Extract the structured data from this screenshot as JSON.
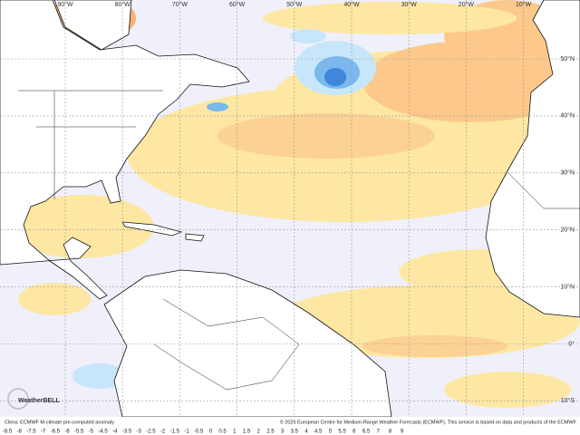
{
  "longitudes": [
    "90°W",
    "80°W",
    "70°W",
    "60°W",
    "50°W",
    "40°W",
    "30°W",
    "20°W",
    "10°W"
  ],
  "latitudes": [
    "50°N",
    "40°N",
    "30°N",
    "20°N",
    "10°N",
    "0°",
    "10°S"
  ],
  "logo": "WeatherBELL",
  "footer": {
    "left": "Clima: ECMWF M-climate pre-computed anomaly",
    "right": "© 2025 European Centre for Medium-Range Weather Forecasts (ECMWF). This service is based on data and products of the ECMWF"
  },
  "colorbar": {
    "ticks": [
      -8.5,
      -8,
      -7.5,
      -7,
      -6.5,
      -6,
      -5.5,
      -5,
      -4.5,
      -4,
      -3.5,
      -3,
      -2.5,
      -2,
      -1.5,
      -1,
      -0.5,
      0,
      0.5,
      1,
      1.5,
      2,
      2.5,
      3,
      3.5,
      4,
      4.5,
      5,
      5.5,
      6,
      6.5,
      7,
      8,
      9
    ]
  }
}
